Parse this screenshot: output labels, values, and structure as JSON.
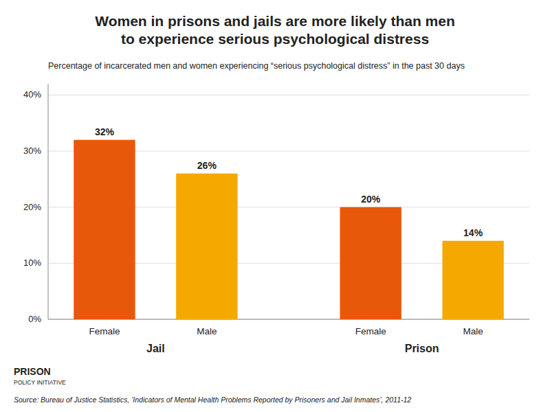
{
  "chart_data": {
    "type": "bar",
    "title": [
      "Women in prisons and jails are more likely than men",
      "to experience serious psychological distress"
    ],
    "subtitle": "Percentage of incarcerated men and women experiencing “serious psychological distress” in the past 30 days",
    "categories": [
      "Female",
      "Male",
      "Female",
      "Male"
    ],
    "group_labels": [
      "Jail",
      "Prison"
    ],
    "values": [
      0.32,
      0.26,
      0.2,
      0.14
    ],
    "value_labels": [
      "32%",
      "26%",
      "20%",
      "14%"
    ],
    "colors": [
      "#e8580a",
      "#f5a800",
      "#e8580a",
      "#f5a800"
    ],
    "ylim": [
      0,
      0.42
    ],
    "yticks": [
      {
        "value": 0.0,
        "label": "0%"
      },
      {
        "value": 0.1,
        "label": "10%"
      },
      {
        "value": 0.2,
        "label": "20%"
      },
      {
        "value": 0.3,
        "label": "30%"
      },
      {
        "value": 0.4,
        "label": "40%"
      }
    ],
    "grid": true,
    "data_labels": true,
    "source": "Source: Bureau of Justice Statistics, ’Indicators of Mental Health Problems Reported by Prisoners and Jail Inmates’, 2011-12",
    "annotations": [
      "PRISON",
      "POLICY INITIATIVE"
    ]
  }
}
